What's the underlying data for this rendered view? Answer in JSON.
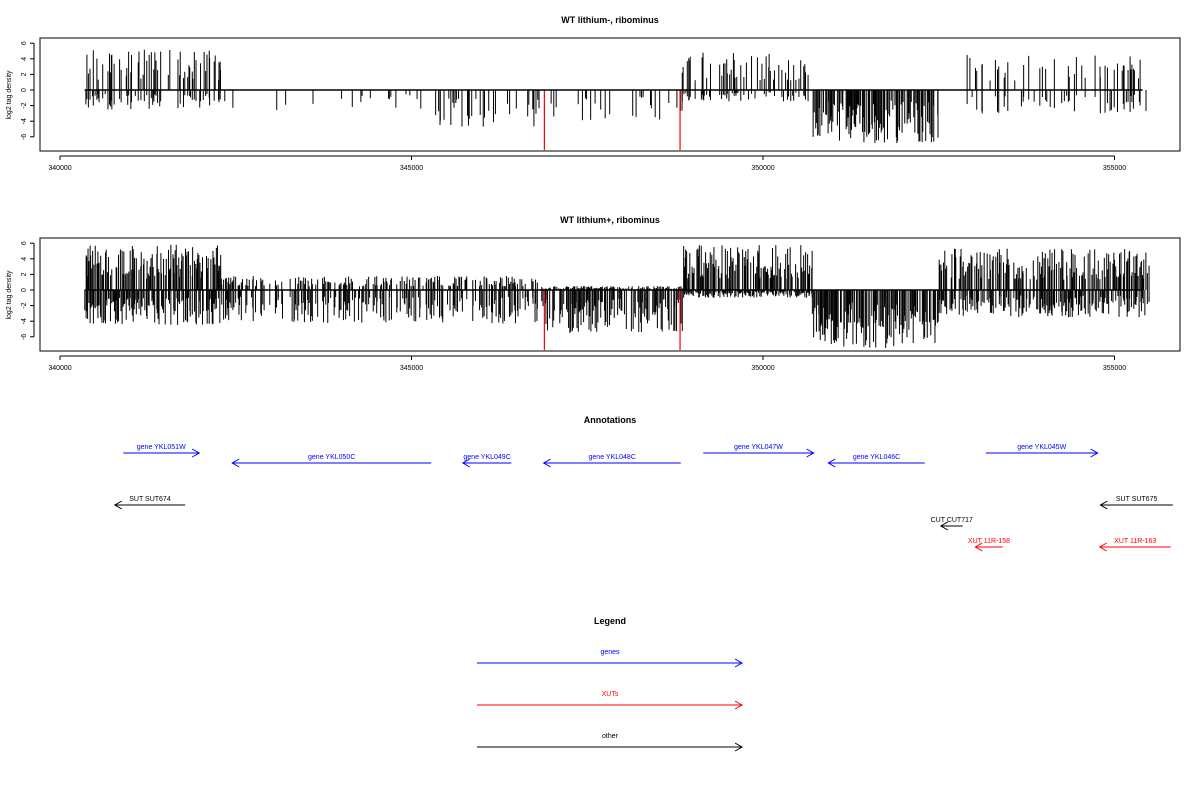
{
  "chart_data": [
    {
      "type": "bar",
      "title": "WT lithium-, ribominus",
      "xlabel": "",
      "ylabel": "log2 tag density",
      "xlim": [
        340000,
        355500
      ],
      "ylim": [
        -7,
        7
      ],
      "xticks": [
        340000,
        345000,
        350000,
        355000
      ],
      "yticks": [
        6,
        4,
        2,
        0,
        -2,
        -4,
        -6
      ],
      "grid": false,
      "density_profile": [
        {
          "start": 340350,
          "end": 342300,
          "max_up": 5.2,
          "max_down": -2.5,
          "fill": 0.45
        },
        {
          "start": 342300,
          "end": 345300,
          "max_up": 0.2,
          "max_down": -2.6,
          "fill": 0.08
        },
        {
          "start": 345300,
          "end": 346850,
          "max_up": 0.2,
          "max_down": -4.8,
          "fill": 0.35
        },
        {
          "start": 346850,
          "end": 348850,
          "max_up": 0.2,
          "max_down": -4.0,
          "fill": 0.15
        },
        {
          "start": 348850,
          "end": 350700,
          "max_up": 4.8,
          "max_down": -1.5,
          "fill": 0.4
        },
        {
          "start": 350700,
          "end": 352500,
          "max_up": 0.2,
          "max_down": -6.8,
          "fill": 0.95
        },
        {
          "start": 352500,
          "end": 352900,
          "max_up": 0.2,
          "max_down": -1.0,
          "fill": 0.05
        },
        {
          "start": 352900,
          "end": 355500,
          "max_up": 4.5,
          "max_down": -3.0,
          "fill": 0.35
        }
      ],
      "marks": [
        {
          "position": 346890,
          "value": -7.7,
          "color": "#ff0000"
        },
        {
          "position": 348820,
          "value": -7.7,
          "color": "#ff0000"
        }
      ]
    },
    {
      "type": "bar",
      "title": "WT lithium+, ribominus",
      "xlabel": "",
      "ylabel": "log2 tag density",
      "xlim": [
        340000,
        355500
      ],
      "ylim": [
        -7,
        7
      ],
      "xticks": [
        340000,
        345000,
        350000,
        355000
      ],
      "yticks": [
        6,
        4,
        2,
        0,
        -2,
        -4,
        -6
      ],
      "grid": false,
      "density_profile": [
        {
          "start": 340350,
          "end": 342300,
          "max_up": 5.8,
          "max_down": -4.5,
          "fill": 0.95
        },
        {
          "start": 342300,
          "end": 346850,
          "max_up": 1.8,
          "max_down": -4.3,
          "fill": 0.6
        },
        {
          "start": 346850,
          "end": 348850,
          "max_up": 0.5,
          "max_down": -5.5,
          "fill": 0.85
        },
        {
          "start": 348850,
          "end": 350700,
          "max_up": 5.8,
          "max_down": -1.0,
          "fill": 0.9
        },
        {
          "start": 350700,
          "end": 352500,
          "max_up": 0.3,
          "max_down": -7.5,
          "fill": 0.98
        },
        {
          "start": 352500,
          "end": 355500,
          "max_up": 5.3,
          "max_down": -3.5,
          "fill": 0.85
        }
      ],
      "marks": [
        {
          "position": 346890,
          "value": -7.7,
          "color": "#ff0000"
        },
        {
          "position": 348820,
          "value": -7.7,
          "color": "#ff0000"
        }
      ]
    }
  ],
  "annotations": {
    "title": "Annotations",
    "items": [
      {
        "label": "gene YKL051W",
        "start": 340900,
        "end": 341980,
        "strand": "+",
        "color": "#0000ff",
        "row": 1
      },
      {
        "label": "gene YKL050C",
        "start": 342450,
        "end": 345280,
        "strand": "-",
        "color": "#0000ff",
        "row": 2
      },
      {
        "label": "gene YKL049C",
        "start": 345730,
        "end": 346420,
        "strand": "-",
        "color": "#0000ff",
        "row": 2
      },
      {
        "label": "gene YKL048C",
        "start": 346880,
        "end": 348830,
        "strand": "-",
        "color": "#0000ff",
        "row": 2
      },
      {
        "label": "gene YKL047W",
        "start": 349150,
        "end": 350720,
        "strand": "+",
        "color": "#0000ff",
        "row": 1
      },
      {
        "label": "gene YKL046C",
        "start": 350930,
        "end": 352300,
        "strand": "-",
        "color": "#0000ff",
        "row": 2
      },
      {
        "label": "gene YKL045W",
        "start": 353170,
        "end": 354760,
        "strand": "+",
        "color": "#0000ff",
        "row": 1
      },
      {
        "label": "SUT SUT674",
        "start": 340780,
        "end": 341780,
        "strand": "-",
        "color": "#000000",
        "row": 3
      },
      {
        "label": "SUT SUT675",
        "start": 354800,
        "end": 355830,
        "strand": "-",
        "color": "#000000",
        "row": 3
      },
      {
        "label": "CUT CUT717",
        "start": 352530,
        "end": 352840,
        "strand": "-",
        "color": "#000000",
        "row": 4
      },
      {
        "label": "XUT 11R-158",
        "start": 353020,
        "end": 353410,
        "strand": "-",
        "color": "#ff0000",
        "row": 5
      },
      {
        "label": "XUT 11R-163",
        "start": 354790,
        "end": 355800,
        "strand": "-",
        "color": "#ff0000",
        "row": 5
      }
    ]
  },
  "legend": {
    "title": "Legend",
    "items": [
      {
        "label": "genes",
        "color": "#0000ff"
      },
      {
        "label": "XUTs",
        "color": "#ff0000"
      },
      {
        "label": "other",
        "color": "#000000"
      }
    ]
  }
}
